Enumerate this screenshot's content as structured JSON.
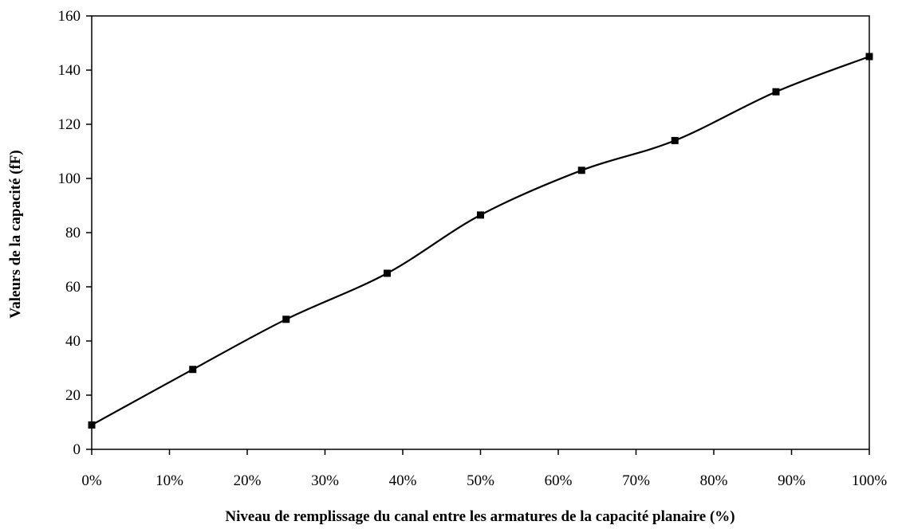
{
  "chart_data": {
    "type": "line",
    "title": "",
    "xlabel": "Niveau de remplissage  du canal entre les armatures de la capacité planaire (%)",
    "ylabel": "Valeurs de la capacité (fF)",
    "xlim": [
      0,
      100
    ],
    "ylim": [
      0,
      160
    ],
    "x_ticks": [
      0,
      10,
      20,
      30,
      40,
      50,
      60,
      70,
      80,
      90,
      100
    ],
    "x_tick_labels": [
      "0%",
      "10%",
      "20%",
      "30%",
      "40%",
      "50%",
      "60%",
      "70%",
      "80%",
      "90%",
      "100%"
    ],
    "y_ticks": [
      0,
      20,
      40,
      60,
      80,
      100,
      120,
      140,
      160
    ],
    "y_tick_labels": [
      "0",
      "20",
      "40",
      "60",
      "80",
      "100",
      "120",
      "140",
      "160"
    ],
    "grid": false,
    "legend": "none",
    "series": [
      {
        "color": "#000000",
        "marker": "square",
        "smooth": true,
        "points": [
          {
            "x": 0,
            "y": 9
          },
          {
            "x": 13,
            "y": 29.5
          },
          {
            "x": 25,
            "y": 48
          },
          {
            "x": 38,
            "y": 65
          },
          {
            "x": 50,
            "y": 86.5
          },
          {
            "x": 63,
            "y": 103
          },
          {
            "x": 75,
            "y": 114
          },
          {
            "x": 88,
            "y": 132
          },
          {
            "x": 100,
            "y": 145
          }
        ]
      }
    ]
  }
}
